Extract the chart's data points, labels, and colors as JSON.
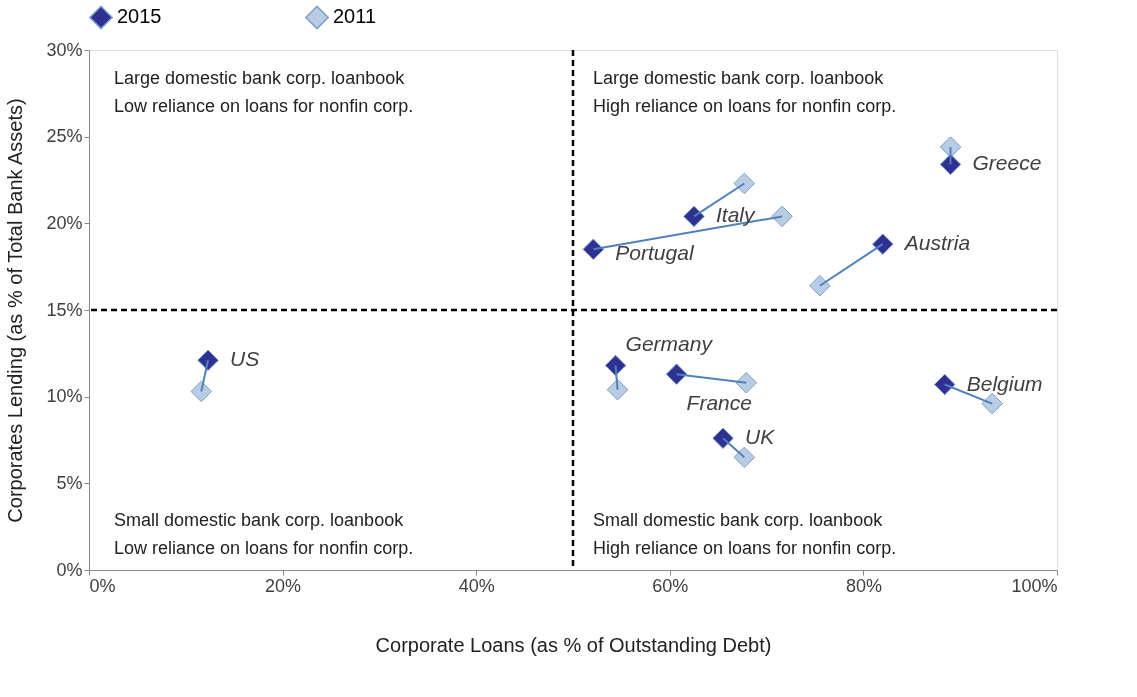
{
  "chart_data": {
    "type": "scatter",
    "xlabel": "Corporate Loans (as % of Outstanding Debt)",
    "ylabel": "Corporates Lending  (as % of Total Bank Assets)",
    "series": [
      {
        "name": "2015",
        "color": "#2e3192",
        "x": [
          12.3,
          52.1,
          62.5,
          89.0,
          82.0,
          54.4,
          60.7,
          88.4,
          65.5
        ],
        "values": [
          12.1,
          18.5,
          20.4,
          23.4,
          18.8,
          11.8,
          11.3,
          10.7,
          7.6
        ]
      },
      {
        "name": "2011",
        "color": "#b8cce4",
        "x": [
          11.6,
          71.6,
          67.7,
          89.0,
          75.5,
          54.6,
          67.9,
          93.3,
          67.7
        ],
        "values": [
          10.3,
          20.4,
          22.3,
          24.4,
          16.4,
          10.4,
          10.8,
          9.6,
          6.5
        ]
      }
    ],
    "xlim": [
      0,
      100
    ],
    "xticks": [
      {
        "value": 0,
        "label": "0%"
      },
      {
        "value": 20,
        "label": "20%"
      },
      {
        "value": 40,
        "label": "40%"
      },
      {
        "value": 60,
        "label": "60%"
      },
      {
        "value": 80,
        "label": "80%"
      },
      {
        "value": 100,
        "label": "100%"
      }
    ],
    "ylim": [
      0,
      30
    ],
    "yticks": [
      {
        "value": 0,
        "label": "0%"
      },
      {
        "value": 5,
        "label": "5%"
      },
      {
        "value": 10,
        "label": "10%"
      },
      {
        "value": 15,
        "label": "15%"
      },
      {
        "value": 20,
        "label": "20%"
      },
      {
        "value": 25,
        "label": "25%"
      },
      {
        "value": 30,
        "label": "30%"
      }
    ],
    "ref_lines": [
      {
        "axis": "x",
        "value": 50,
        "line_style": "dashed"
      },
      {
        "axis": "y",
        "value": 15,
        "line_style": "dashed"
      }
    ],
    "annotations": [
      {
        "text": "US",
        "x": 12.3,
        "y": 12.1
      },
      {
        "text": "Portugal",
        "x": 52.1,
        "y": 18.5
      },
      {
        "text": "Italy",
        "x": 62.5,
        "y": 20.4
      },
      {
        "text": "Greece",
        "x": 89.0,
        "y": 23.4
      },
      {
        "text": "Austria",
        "x": 82.0,
        "y": 18.8
      },
      {
        "text": "Germany",
        "x": 54.4,
        "y": 11.8
      },
      {
        "text": "France",
        "x": 60.7,
        "y": 11.3
      },
      {
        "text": "Belgium",
        "x": 88.4,
        "y": 10.7
      },
      {
        "text": "UK",
        "x": 65.5,
        "y": 7.6
      },
      "Large domestic bank corp. loanbook\nLow reliance on loans for nonfin corp.",
      "Large domestic bank corp. loanbook\nHigh reliance on loans for nonfin corp.",
      "Small domestic bank corp. loanbook\nLow reliance on loans for nonfin corp.",
      "Small domestic bank corp. loanbook\nHigh reliance on loans for nonfin corp."
    ],
    "legend": "top",
    "grid": false,
    "marker": "diamond"
  }
}
